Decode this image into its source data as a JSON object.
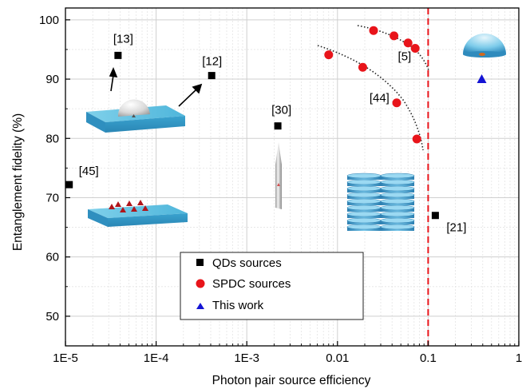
{
  "chart_data": {
    "type": "scatter",
    "xlabel": "Photon pair source efficiency",
    "ylabel": "Entanglement fidelity (%)",
    "x_scale": "log",
    "xlim": [
      1e-05,
      1
    ],
    "ylim": [
      45,
      102
    ],
    "x_ticks": [
      {
        "value": 1e-05,
        "label": "1E-5"
      },
      {
        "value": 0.0001,
        "label": "1E-4"
      },
      {
        "value": 0.001,
        "label": "1E-3"
      },
      {
        "value": 0.01,
        "label": "0.01"
      },
      {
        "value": 0.1,
        "label": "0.1"
      },
      {
        "value": 1,
        "label": "1"
      }
    ],
    "y_ticks": [
      50,
      60,
      70,
      80,
      90,
      100
    ],
    "grid": true,
    "legend_position": "bottom-center",
    "series": [
      {
        "name": "QDs sources",
        "marker": "square",
        "color": "#000000",
        "points": [
          {
            "x": 1.1e-05,
            "y": 72.2,
            "label": "[45]"
          },
          {
            "x": 3.8e-05,
            "y": 94.0,
            "label": "[13]"
          },
          {
            "x": 0.00041,
            "y": 90.6,
            "label": "[12]"
          },
          {
            "x": 0.0022,
            "y": 82.1,
            "label": "[30]"
          },
          {
            "x": 0.12,
            "y": 67.0,
            "label": "[21]"
          }
        ]
      },
      {
        "name": "SPDC sources",
        "marker": "circle",
        "color": "#e8141a",
        "points": [
          {
            "x": 0.008,
            "y": 94.1
          },
          {
            "x": 0.019,
            "y": 92.0
          },
          {
            "x": 0.025,
            "y": 98.2
          },
          {
            "x": 0.042,
            "y": 97.3
          },
          {
            "x": 0.045,
            "y": 86.0
          },
          {
            "x": 0.06,
            "y": 96.1
          },
          {
            "x": 0.072,
            "y": 95.2
          },
          {
            "x": 0.075,
            "y": 79.9
          }
        ],
        "group_labels": [
          {
            "text": "[5]",
            "x": 0.055,
            "y": 93.2
          },
          {
            "text": "[44]",
            "x": 0.029,
            "y": 86.2
          }
        ]
      },
      {
        "name": "This work",
        "marker": "triangle",
        "color": "#1414d4",
        "points": [
          {
            "x": 0.39,
            "y": 90.0
          }
        ]
      }
    ],
    "reference_line": {
      "x": 0.1,
      "style": "dashed",
      "color": "#e8141a"
    }
  }
}
